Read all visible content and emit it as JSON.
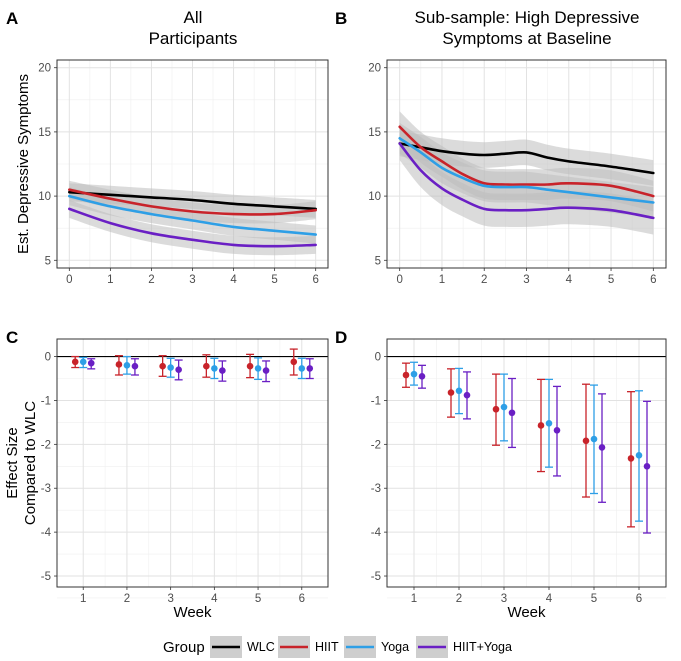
{
  "colors": {
    "WLC": "#000000",
    "HIIT": "#c8232a",
    "Yoga": "#2e9fe6",
    "HIIT+Yoga": "#6a1fc4",
    "band": "#bdbdbd",
    "grid_major": "#e2e2e2",
    "grid_minor": "#efefef",
    "axis_text": "#4d4d4d",
    "panel_border": "#333333"
  },
  "legend": {
    "title": "Group",
    "items": [
      "WLC",
      "HIIT",
      "Yoga",
      "HIIT+Yoga"
    ],
    "placement": "bottom"
  },
  "chart_data": [
    {
      "panel": "A",
      "type": "line",
      "title": "All\nParticipants",
      "xlabel": "",
      "ylabel": "Est. Depressive Symptoms",
      "x_ticks": [
        0,
        1,
        2,
        3,
        4,
        5,
        6
      ],
      "y_ticks": [
        5,
        10,
        15,
        20
      ],
      "xlim": [
        -0.3,
        6.3
      ],
      "ylim": [
        4.4,
        20.6
      ],
      "grid": true,
      "x": [
        0,
        1,
        2,
        3,
        4,
        5,
        6
      ],
      "series": [
        {
          "name": "WLC",
          "values": [
            10.3,
            10.1,
            9.9,
            9.7,
            9.4,
            9.2,
            9.0
          ],
          "band": 0.7
        },
        {
          "name": "HIIT",
          "values": [
            10.5,
            9.8,
            9.2,
            8.8,
            8.6,
            8.6,
            8.9
          ],
          "band": 0.7
        },
        {
          "name": "Yoga",
          "values": [
            10.0,
            9.2,
            8.6,
            8.1,
            7.6,
            7.3,
            7.0
          ],
          "band": 0.7
        },
        {
          "name": "HIIT+Yoga",
          "values": [
            9.0,
            7.9,
            7.1,
            6.6,
            6.2,
            6.1,
            6.2
          ],
          "band": 0.7
        }
      ]
    },
    {
      "panel": "B",
      "type": "line",
      "title": "Sub-sample: High Depressive\nSymptoms at Baseline",
      "xlabel": "",
      "ylabel": "",
      "x_ticks": [
        0,
        1,
        2,
        3,
        4,
        5,
        6
      ],
      "y_ticks": [
        5,
        10,
        15,
        20
      ],
      "xlim": [
        -0.3,
        6.3
      ],
      "ylim": [
        4.4,
        20.6
      ],
      "grid": true,
      "x": [
        0,
        0.5,
        1,
        1.5,
        2,
        2.5,
        3,
        3.5,
        4,
        5,
        6
      ],
      "series": [
        {
          "name": "WLC",
          "values": [
            14.1,
            13.8,
            13.5,
            13.3,
            13.2,
            13.3,
            13.4,
            13.0,
            12.7,
            12.3,
            11.8
          ],
          "band": 1.0
        },
        {
          "name": "HIIT",
          "values": [
            15.4,
            13.8,
            12.7,
            11.7,
            11.0,
            10.9,
            10.9,
            10.9,
            11.0,
            10.8,
            10.0
          ],
          "band": 1.2
        },
        {
          "name": "Yoga",
          "values": [
            14.5,
            13.4,
            12.2,
            11.4,
            10.8,
            10.7,
            10.7,
            10.5,
            10.3,
            9.9,
            9.5
          ],
          "band": 1.2
        },
        {
          "name": "HIIT+Yoga",
          "values": [
            14.1,
            12.0,
            10.6,
            9.7,
            9.0,
            8.9,
            8.9,
            9.0,
            9.1,
            8.9,
            8.3
          ],
          "band": 1.3
        }
      ]
    },
    {
      "panel": "C",
      "type": "scatter",
      "title": "",
      "xlabel": "Week",
      "ylabel": "Effect Size\nCompared to WLC",
      "x_ticks": [
        1,
        2,
        3,
        4,
        5,
        6
      ],
      "y_ticks": [
        0,
        -1,
        -2,
        -3,
        -4,
        -5
      ],
      "xlim": [
        0.4,
        6.6
      ],
      "ylim": [
        -5.25,
        0.4
      ],
      "grid": true,
      "reference_line": 0,
      "series": [
        {
          "name": "HIIT",
          "x": [
            1,
            2,
            3,
            4,
            5,
            6
          ],
          "values": [
            -0.12,
            -0.18,
            -0.22,
            -0.22,
            -0.22,
            -0.12
          ],
          "lower": [
            -0.25,
            -0.42,
            -0.45,
            -0.47,
            -0.48,
            -0.42
          ],
          "upper": [
            0.0,
            0.02,
            0.02,
            0.04,
            0.05,
            0.17
          ]
        },
        {
          "name": "Yoga",
          "x": [
            1,
            2,
            3,
            4,
            5,
            6
          ],
          "values": [
            -0.12,
            -0.2,
            -0.25,
            -0.27,
            -0.27,
            -0.27
          ],
          "lower": [
            -0.25,
            -0.4,
            -0.47,
            -0.5,
            -0.52,
            -0.5
          ],
          "upper": [
            -0.02,
            0.0,
            -0.04,
            -0.04,
            -0.03,
            -0.04
          ]
        },
        {
          "name": "HIIT+Yoga",
          "x": [
            1,
            2,
            3,
            4,
            5,
            6
          ],
          "values": [
            -0.15,
            -0.22,
            -0.3,
            -0.32,
            -0.32,
            -0.27
          ],
          "lower": [
            -0.28,
            -0.42,
            -0.53,
            -0.56,
            -0.57,
            -0.5
          ],
          "upper": [
            -0.05,
            -0.05,
            -0.08,
            -0.1,
            -0.1,
            -0.05
          ]
        }
      ]
    },
    {
      "panel": "D",
      "type": "scatter",
      "title": "",
      "xlabel": "Week",
      "ylabel": "",
      "x_ticks": [
        1,
        2,
        3,
        4,
        5,
        6
      ],
      "y_ticks": [
        0,
        -1,
        -2,
        -3,
        -4,
        -5
      ],
      "xlim": [
        0.4,
        6.6
      ],
      "ylim": [
        -5.25,
        0.4
      ],
      "grid": true,
      "reference_line": 0,
      "series": [
        {
          "name": "HIIT",
          "x": [
            1,
            2,
            3,
            4,
            5,
            6
          ],
          "values": [
            -0.42,
            -0.82,
            -1.2,
            -1.57,
            -1.92,
            -2.32
          ],
          "lower": [
            -0.7,
            -1.38,
            -2.02,
            -2.62,
            -3.2,
            -3.88
          ],
          "upper": [
            -0.15,
            -0.28,
            -0.4,
            -0.52,
            -0.63,
            -0.8
          ]
        },
        {
          "name": "Yoga",
          "x": [
            1,
            2,
            3,
            4,
            5,
            6
          ],
          "values": [
            -0.4,
            -0.78,
            -1.15,
            -1.52,
            -1.88,
            -2.25
          ],
          "lower": [
            -0.65,
            -1.3,
            -1.92,
            -2.52,
            -3.12,
            -3.75
          ],
          "upper": [
            -0.13,
            -0.27,
            -0.4,
            -0.52,
            -0.65,
            -0.78
          ]
        },
        {
          "name": "HIIT+Yoga",
          "x": [
            1,
            2,
            3,
            4,
            5,
            6
          ],
          "values": [
            -0.45,
            -0.88,
            -1.28,
            -1.68,
            -2.07,
            -2.5
          ],
          "lower": [
            -0.72,
            -1.42,
            -2.07,
            -2.72,
            -3.32,
            -4.02
          ],
          "upper": [
            -0.2,
            -0.35,
            -0.5,
            -0.68,
            -0.85,
            -1.02
          ]
        }
      ]
    }
  ]
}
